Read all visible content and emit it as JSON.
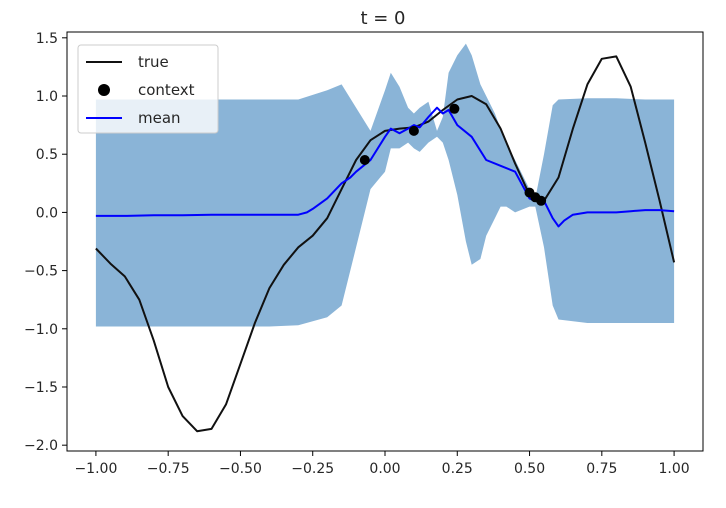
{
  "chart_data": {
    "type": "line",
    "title": "t = 0",
    "xlabel": "",
    "ylabel": "",
    "xlim": [
      -1.1,
      1.1
    ],
    "ylim": [
      -2.05,
      1.55
    ],
    "xticks": [
      -1.0,
      -0.75,
      -0.5,
      -0.25,
      0.0,
      0.25,
      0.5,
      0.75,
      1.0
    ],
    "xtick_labels": [
      "−1.00",
      "−0.75",
      "−0.50",
      "−0.25",
      "0.00",
      "0.25",
      "0.50",
      "0.75",
      "1.00"
    ],
    "yticks": [
      1.5,
      1.0,
      0.5,
      0.0,
      -0.5,
      -1.0,
      -1.5,
      -2.0
    ],
    "ytick_labels": [
      "1.5",
      "1.0",
      "0.5",
      "0.0",
      "−0.5",
      "−1.0",
      "−1.5",
      "−2.0"
    ],
    "legend": {
      "placement": "top-left",
      "entries": [
        {
          "label": "true",
          "kind": "line",
          "color": "#111111"
        },
        {
          "label": "context",
          "kind": "marker",
          "color": "#000000"
        },
        {
          "label": "mean",
          "kind": "line",
          "color": "#0000ff"
        }
      ]
    },
    "colors": {
      "true": "#111111",
      "mean": "#0000ff",
      "band": "#8ab4d7",
      "context": "#000000"
    },
    "series": [
      {
        "name": "true",
        "x": [
          -1.0,
          -0.95,
          -0.9,
          -0.85,
          -0.8,
          -0.75,
          -0.7,
          -0.65,
          -0.6,
          -0.55,
          -0.5,
          -0.45,
          -0.4,
          -0.35,
          -0.3,
          -0.25,
          -0.2,
          -0.15,
          -0.1,
          -0.05,
          0.0,
          0.05,
          0.1,
          0.15,
          0.2,
          0.25,
          0.3,
          0.35,
          0.4,
          0.45,
          0.5,
          0.55,
          0.6,
          0.65,
          0.7,
          0.75,
          0.8,
          0.85,
          0.9,
          0.95,
          1.0
        ],
        "y": [
          -0.31,
          -0.44,
          -0.55,
          -0.75,
          -1.1,
          -1.5,
          -1.75,
          -1.88,
          -1.86,
          -1.65,
          -1.3,
          -0.95,
          -0.65,
          -0.45,
          -0.3,
          -0.2,
          -0.05,
          0.2,
          0.45,
          0.62,
          0.7,
          0.72,
          0.73,
          0.78,
          0.88,
          0.97,
          1.0,
          0.93,
          0.72,
          0.42,
          0.15,
          0.1,
          0.3,
          0.72,
          1.1,
          1.32,
          1.34,
          1.08,
          0.6,
          0.1,
          -0.43
        ]
      },
      {
        "name": "mean",
        "x": [
          -1.0,
          -0.9,
          -0.8,
          -0.7,
          -0.6,
          -0.5,
          -0.4,
          -0.35,
          -0.3,
          -0.27,
          -0.25,
          -0.2,
          -0.15,
          -0.12,
          -0.1,
          -0.05,
          0.0,
          0.02,
          0.05,
          0.08,
          0.1,
          0.12,
          0.15,
          0.18,
          0.2,
          0.22,
          0.25,
          0.3,
          0.35,
          0.4,
          0.45,
          0.5,
          0.52,
          0.55,
          0.58,
          0.6,
          0.62,
          0.65,
          0.7,
          0.75,
          0.8,
          0.85,
          0.9,
          0.95,
          1.0
        ],
        "y": [
          -0.03,
          -0.03,
          -0.025,
          -0.025,
          -0.02,
          -0.02,
          -0.02,
          -0.02,
          -0.02,
          0.0,
          0.03,
          0.12,
          0.25,
          0.3,
          0.35,
          0.45,
          0.65,
          0.72,
          0.68,
          0.72,
          0.75,
          0.73,
          0.82,
          0.9,
          0.85,
          0.88,
          0.75,
          0.65,
          0.45,
          0.4,
          0.35,
          0.12,
          0.1,
          0.1,
          -0.05,
          -0.12,
          -0.07,
          -0.02,
          0.0,
          0.0,
          0.0,
          0.01,
          0.02,
          0.02,
          0.01
        ]
      },
      {
        "name": "",
        "role": "confidence-band",
        "x": [
          -1.0,
          -0.9,
          -0.8,
          -0.7,
          -0.6,
          -0.5,
          -0.4,
          -0.3,
          -0.2,
          -0.15,
          -0.1,
          -0.05,
          0.0,
          0.02,
          0.05,
          0.08,
          0.1,
          0.12,
          0.15,
          0.18,
          0.2,
          0.22,
          0.25,
          0.28,
          0.3,
          0.33,
          0.35,
          0.38,
          0.4,
          0.42,
          0.45,
          0.5,
          0.52,
          0.55,
          0.58,
          0.6,
          0.7,
          0.8,
          0.9,
          1.0
        ],
        "upper": [
          0.97,
          0.97,
          0.97,
          0.97,
          0.97,
          0.97,
          0.97,
          0.97,
          1.05,
          1.1,
          0.9,
          0.7,
          1.05,
          1.2,
          1.08,
          0.9,
          0.85,
          0.9,
          0.95,
          0.7,
          0.82,
          1.2,
          1.35,
          1.45,
          1.35,
          1.1,
          1.0,
          0.85,
          0.72,
          0.6,
          0.45,
          0.2,
          0.12,
          0.5,
          0.92,
          0.97,
          0.98,
          0.98,
          0.97,
          0.97
        ],
        "lower": [
          -0.98,
          -0.98,
          -0.98,
          -0.98,
          -0.98,
          -0.98,
          -0.98,
          -0.97,
          -0.9,
          -0.8,
          -0.3,
          0.2,
          0.35,
          0.55,
          0.55,
          0.6,
          0.55,
          0.52,
          0.6,
          0.65,
          0.6,
          0.45,
          0.15,
          -0.25,
          -0.45,
          -0.4,
          -0.2,
          -0.05,
          0.05,
          0.05,
          0.0,
          0.05,
          0.05,
          -0.3,
          -0.8,
          -0.92,
          -0.95,
          -0.95,
          -0.95,
          -0.95
        ]
      }
    ],
    "context_points": {
      "x": [
        -0.07,
        0.1,
        0.24,
        0.5,
        0.52,
        0.54
      ],
      "y": [
        0.45,
        0.7,
        0.89,
        0.17,
        0.13,
        0.1
      ]
    },
    "grid": false
  }
}
